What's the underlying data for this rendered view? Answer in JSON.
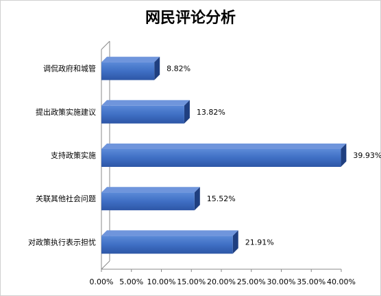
{
  "chart_data": {
    "type": "bar",
    "orientation": "horizontal",
    "title": "网民评论分析",
    "categories": [
      "调侃政府和城管",
      "提出政策实施建议",
      "支持政策实施",
      "关联其他社会问题",
      "对政策执行表示担忧"
    ],
    "values": [
      8.82,
      13.82,
      39.93,
      15.52,
      21.91
    ],
    "value_labels": [
      "8.82%",
      "13.82%",
      "39.93%",
      "15.52%",
      "21.91%"
    ],
    "color": "#4472c4",
    "xlim": [
      0,
      40
    ],
    "xticks": [
      {
        "value": 0,
        "label": "0.00%"
      },
      {
        "value": 5,
        "label": "5.00%"
      },
      {
        "value": 10,
        "label": "10.00%"
      },
      {
        "value": 15,
        "label": "15.00%"
      },
      {
        "value": 20,
        "label": "20.00%"
      },
      {
        "value": 25,
        "label": "25.00%"
      },
      {
        "value": 30,
        "label": "30.00%"
      },
      {
        "value": 35,
        "label": "35.00%"
      },
      {
        "value": 40,
        "label": "40.00%"
      }
    ]
  }
}
